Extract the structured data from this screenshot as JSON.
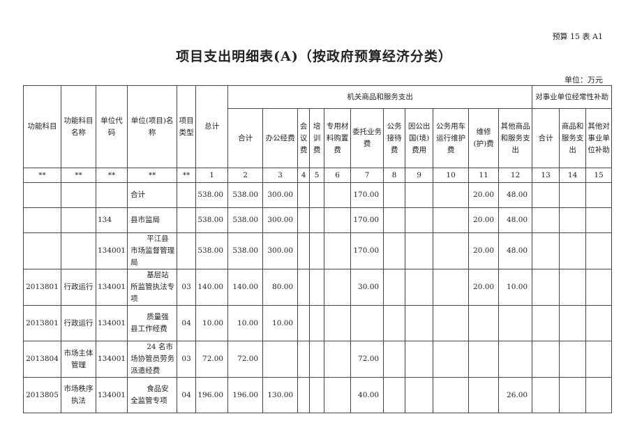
{
  "doc": {
    "code": "预算 15 表 A1",
    "title": "项目支出明细表(A)（按政府预算经济分类）",
    "unit": "单位：万元"
  },
  "headers": {
    "func_code": "功能科目",
    "func_name": "功能科目名称",
    "unit_code": "单位代码",
    "unit_name": "单位(项目)名称",
    "proj_type": "项目类型",
    "total": "总计",
    "group_a": "机关商品和服务支出",
    "group_b": "对事业单位经常性补助",
    "a_cols": [
      "合计",
      "办公经费",
      "会议费",
      "培训费",
      "专用材料购置费",
      "委托业务费",
      "公务接待费",
      "因公出国(境)费用",
      "公务用车运行维护费",
      "维修(护)费",
      "其他商品和服务支出"
    ],
    "b_cols": [
      "合计",
      "商品和服务支出",
      "其他对事业单位补助"
    ],
    "index_row": [
      "**",
      "**",
      "**",
      "**",
      "**",
      "1",
      "2",
      "3",
      "4",
      "5",
      "6",
      "7",
      "8",
      "9",
      "10",
      "11",
      "12",
      "13",
      "14",
      "15"
    ]
  },
  "rows": [
    {
      "func_code": "",
      "func_name": "",
      "unit_code": "",
      "unit_name": "合计",
      "proj_type": "",
      "vals": [
        "538.00",
        "538.00",
        "300.00",
        "",
        "",
        "",
        "170.00",
        "",
        "",
        "",
        "20.00",
        "48.00",
        "",
        "",
        ""
      ]
    },
    {
      "func_code": "",
      "func_name": "",
      "unit_code": "134",
      "unit_name": "县市监局",
      "proj_type": "",
      "vals": [
        "538.00",
        "538.00",
        "300.00",
        "",
        "",
        "",
        "170.00",
        "",
        "",
        "",
        "20.00",
        "48.00",
        "",
        "",
        ""
      ]
    },
    {
      "func_code": "",
      "func_name": "",
      "unit_code": "134001",
      "unit_name": "平江县市场监督管理局",
      "proj_type": "",
      "vals": [
        "538.00",
        "538.00",
        "300.00",
        "",
        "",
        "",
        "170.00",
        "",
        "",
        "",
        "20.00",
        "48.00",
        "",
        "",
        ""
      ]
    },
    {
      "func_code": "2013801",
      "func_name": "行政运行",
      "unit_code": "134001",
      "unit_name": "基层站所监管执法专项",
      "proj_type": "03",
      "vals": [
        "140.00",
        "140.00",
        "80.00",
        "",
        "",
        "",
        "30.00",
        "",
        "",
        "",
        "20.00",
        "10.00",
        "",
        "",
        ""
      ]
    },
    {
      "func_code": "2013801",
      "func_name": "行政运行",
      "unit_code": "134001",
      "unit_name": "质量强县工作经费",
      "proj_type": "04",
      "vals": [
        "10.00",
        "10.00",
        "10.00",
        "",
        "",
        "",
        "",
        "",
        "",
        "",
        "",
        "",
        "",
        "",
        ""
      ]
    },
    {
      "func_code": "2013804",
      "func_name": "市场主体管理",
      "unit_code": "134001",
      "unit_name": "24 名市场协管员劳务派遣经费",
      "proj_type": "03",
      "vals": [
        "72.00",
        "72.00",
        "",
        "",
        "",
        "",
        "72.00",
        "",
        "",
        "",
        "",
        "",
        "",
        "",
        ""
      ]
    },
    {
      "func_code": "2013805",
      "func_name": "市场秩序执法",
      "unit_code": "134001",
      "unit_name": "食品安全监管专项",
      "proj_type": "04",
      "vals": [
        "196.00",
        "196.00",
        "130.00",
        "",
        "",
        "",
        "40.00",
        "",
        "",
        "",
        "",
        "26.00",
        "",
        "",
        ""
      ]
    }
  ]
}
